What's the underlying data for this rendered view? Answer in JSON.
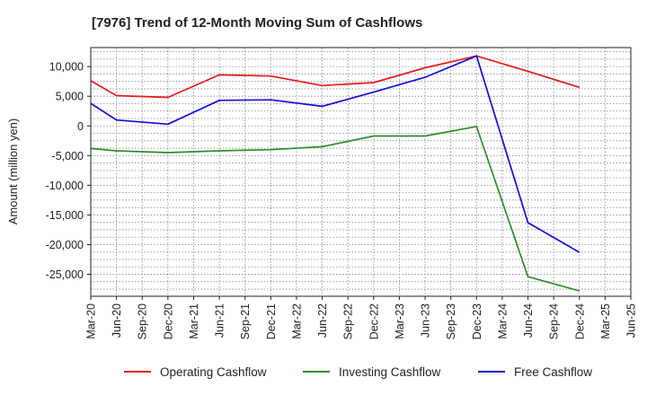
{
  "chart_data": {
    "type": "line",
    "title": "[7976]  Trend of 12-Month Moving Sum of Cashflows",
    "xlabel": "",
    "ylabel": "Amount (million yen)",
    "x": [
      "Mar-20",
      "Jun-20",
      "Sep-20",
      "Dec-20",
      "Mar-21",
      "Jun-21",
      "Sep-21",
      "Dec-21",
      "Mar-22",
      "Jun-22",
      "Sep-22",
      "Dec-22",
      "Mar-23",
      "Jun-23",
      "Sep-23",
      "Dec-23",
      "Mar-24",
      "Jun-24",
      "Sep-24",
      "Dec-24",
      "Mar-25",
      "Jun-25"
    ],
    "ylim": [
      -28700,
      13200
    ],
    "yticks": [
      10000,
      5000,
      0,
      -5000,
      -10000,
      -15000,
      -20000,
      -25000
    ],
    "ytick_labels": [
      "10,000",
      "5,000",
      "0",
      "-5,000",
      "-10,000",
      "-15,000",
      "-20,000",
      "-25,000"
    ],
    "grid": true,
    "legend_position": "bottom",
    "series": [
      {
        "name": "Operating Cashflow",
        "color": "#e31a1c",
        "values": [
          7600,
          5100,
          null,
          4800,
          null,
          8600,
          null,
          8400,
          null,
          6800,
          null,
          7300,
          null,
          9800,
          null,
          11800,
          null,
          9200,
          null,
          6500,
          null,
          null
        ]
      },
      {
        "name": "Investing Cashflow",
        "color": "#2e8b2e",
        "values": [
          -3800,
          -4200,
          null,
          -4500,
          null,
          -4200,
          null,
          -4000,
          null,
          -3500,
          null,
          -1700,
          null,
          -1700,
          null,
          -100,
          null,
          -25400,
          null,
          -27800,
          null,
          null
        ]
      },
      {
        "name": "Free Cashflow",
        "color": "#1010d8",
        "values": [
          3800,
          1000,
          null,
          300,
          null,
          4300,
          null,
          4400,
          null,
          3300,
          null,
          5700,
          null,
          8200,
          null,
          11800,
          null,
          -16300,
          null,
          -21300,
          null,
          null
        ]
      }
    ]
  }
}
